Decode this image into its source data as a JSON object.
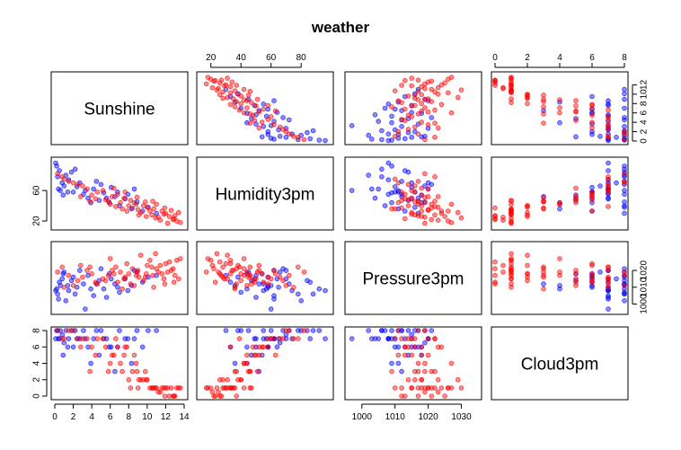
{
  "chart_data": {
    "type": "scatter",
    "title": "weather",
    "variables": [
      "Sunshine",
      "Humidity3pm",
      "Pressure3pm",
      "Cloud3pm"
    ],
    "ranges": {
      "Sunshine": [
        0,
        14
      ],
      "Humidity3pm": [
        13,
        99
      ],
      "Pressure3pm": [
        996,
        1035
      ],
      "Cloud3pm": [
        0,
        8
      ]
    },
    "ticks": {
      "Sunshine": [
        0,
        2,
        4,
        6,
        8,
        10,
        12,
        14
      ],
      "Humidity3pm": [
        20,
        40,
        60,
        80
      ],
      "Pressure3pm": [
        1000,
        1010,
        1020,
        1030
      ],
      "Cloud3pm": [
        0,
        2,
        4,
        6,
        8
      ]
    },
    "left_ticks": {
      "Humidity3pm": [
        20,
        60
      ],
      "Cloud3pm": [
        0,
        2,
        4,
        6,
        8
      ]
    },
    "right_ticks": {
      "Sunshine": [
        0,
        2,
        4,
        6,
        8,
        10,
        12
      ],
      "Pressure3pm": [
        1000,
        1010,
        1020
      ]
    },
    "groups": [
      {
        "color": "#0000ff"
      },
      {
        "color": "#ff0000"
      }
    ],
    "series": [
      {
        "group": 0,
        "points": [
          [
            0.2,
            92,
            1009,
            8
          ],
          [
            0.5,
            86,
            1013,
            7
          ],
          [
            0.3,
            78,
            1006,
            8
          ],
          [
            0.8,
            70,
            1015,
            7.5
          ],
          [
            1.0,
            66,
            1019,
            6.5
          ],
          [
            0.6,
            60,
            1011,
            8
          ],
          [
            1.5,
            74,
            1008,
            7
          ],
          [
            2.0,
            58,
            1016,
            6
          ],
          [
            2.4,
            65,
            1010,
            7
          ],
          [
            3.1,
            55,
            1012,
            8
          ],
          [
            3.6,
            50,
            1017,
            6
          ],
          [
            4.2,
            62,
            1005,
            7
          ],
          [
            4.8,
            47,
            1014,
            5
          ],
          [
            5.3,
            57,
            1009,
            7
          ],
          [
            5.9,
            44,
            1018,
            6
          ],
          [
            6.5,
            52,
            1012,
            3
          ],
          [
            7.0,
            40,
            1007,
            8
          ],
          [
            7.6,
            49,
            1015,
            7
          ],
          [
            8.3,
            36,
            1011,
            4
          ],
          [
            8.9,
            45,
            1019,
            8
          ],
          [
            1.2,
            80,
            1002,
            8
          ],
          [
            2.7,
            70,
            1020,
            7
          ],
          [
            0.1,
            96,
            1008,
            7
          ],
          [
            9.5,
            33,
            1013,
            6
          ],
          [
            10.1,
            38,
            1016,
            8
          ],
          [
            3.3,
            60,
            997,
            7
          ],
          [
            5.0,
            68,
            1021,
            8
          ],
          [
            6.8,
            58,
            1010,
            6
          ],
          [
            1.8,
            84,
            1014,
            8
          ],
          [
            0.4,
            62,
            1003,
            7
          ],
          [
            4.5,
            72,
            1012,
            8
          ],
          [
            7.9,
            55,
            1008,
            7
          ],
          [
            11.0,
            30,
            1017,
            8
          ],
          [
            2.2,
            88,
            1006,
            8
          ],
          [
            0.9,
            54,
            1018,
            5
          ],
          [
            6.1,
            64,
            1015,
            6
          ],
          [
            8.6,
            62,
            1020,
            7
          ],
          [
            3.9,
            44,
            1009,
            4
          ],
          [
            1.4,
            58,
            1011,
            6
          ],
          [
            5.6,
            50,
            1004,
            7
          ]
        ]
      },
      {
        "group": 1,
        "points": [
          [
            8.0,
            40,
            1018,
            2
          ],
          [
            9.0,
            35,
            1020,
            1
          ],
          [
            10.5,
            28,
            1022,
            1
          ],
          [
            11.2,
            25,
            1019,
            0.5
          ],
          [
            12.0,
            30,
            1024,
            1
          ],
          [
            12.8,
            22,
            1021,
            0
          ],
          [
            13.2,
            20,
            1026,
            1
          ],
          [
            9.8,
            45,
            1016,
            3
          ],
          [
            7.5,
            50,
            1015,
            5
          ],
          [
            6.8,
            55,
            1013,
            6
          ],
          [
            10.0,
            38,
            1023,
            2
          ],
          [
            11.6,
            33,
            1018,
            1
          ],
          [
            8.8,
            42,
            1017,
            4
          ],
          [
            5.5,
            48,
            1014,
            6
          ],
          [
            4.6,
            58,
            1012,
            7
          ],
          [
            3.0,
            66,
            1016,
            7
          ],
          [
            2.0,
            70,
            1011,
            8
          ],
          [
            1.0,
            75,
            1010,
            7
          ],
          [
            12.4,
            26,
            1025,
            0
          ],
          [
            13.6,
            18,
            1027,
            1
          ],
          [
            9.3,
            31,
            1029,
            2
          ],
          [
            10.9,
            24,
            1030,
            1
          ],
          [
            8.4,
            37,
            1021,
            3
          ],
          [
            7.1,
            44,
            1019,
            4
          ],
          [
            6.2,
            52,
            1020,
            5
          ],
          [
            5.8,
            46,
            1017,
            3
          ],
          [
            11.8,
            29,
            1015,
            1
          ],
          [
            12.9,
            23,
            1013,
            0
          ],
          [
            9.6,
            40,
            1014,
            2
          ],
          [
            8.2,
            47,
            1012,
            1
          ],
          [
            10.7,
            36,
            1010,
            1
          ],
          [
            7.8,
            33,
            1024,
            6
          ],
          [
            6.6,
            39,
            1022,
            7
          ],
          [
            4.0,
            54,
            1018,
            6
          ],
          [
            3.5,
            62,
            1020,
            7
          ],
          [
            2.5,
            68,
            1014,
            7
          ],
          [
            11.4,
            21,
            1023,
            0.5
          ],
          [
            12.2,
            17,
            1019,
            1
          ],
          [
            9.1,
            28,
            1016,
            2
          ],
          [
            10.3,
            33,
            1026,
            1
          ],
          [
            8.6,
            44,
            1011,
            5
          ],
          [
            7.3,
            36,
            1009,
            3
          ],
          [
            6.0,
            42,
            1027,
            4
          ],
          [
            5.2,
            60,
            1015,
            7
          ],
          [
            4.4,
            49,
            1013,
            5
          ],
          [
            1.5,
            72,
            1017,
            8
          ],
          [
            0.8,
            78,
            1022,
            7
          ],
          [
            0.3,
            82,
            1019,
            8
          ],
          [
            13.0,
            27,
            1017,
            0
          ],
          [
            11.0,
            42,
            1021,
            1
          ],
          [
            9.9,
            26,
            1018,
            2
          ],
          [
            8.9,
            51,
            1019,
            3
          ],
          [
            10.6,
            46,
            1017,
            1
          ],
          [
            12.6,
            34,
            1020,
            1
          ],
          [
            7.6,
            58,
            1016,
            6
          ],
          [
            6.4,
            63,
            1018,
            5
          ],
          [
            3.8,
            46,
            1022,
            3
          ],
          [
            2.8,
            52,
            1023,
            6
          ],
          [
            13.4,
            31,
            1015,
            1
          ],
          [
            11.9,
            37,
            1012,
            0
          ]
        ]
      }
    ]
  }
}
